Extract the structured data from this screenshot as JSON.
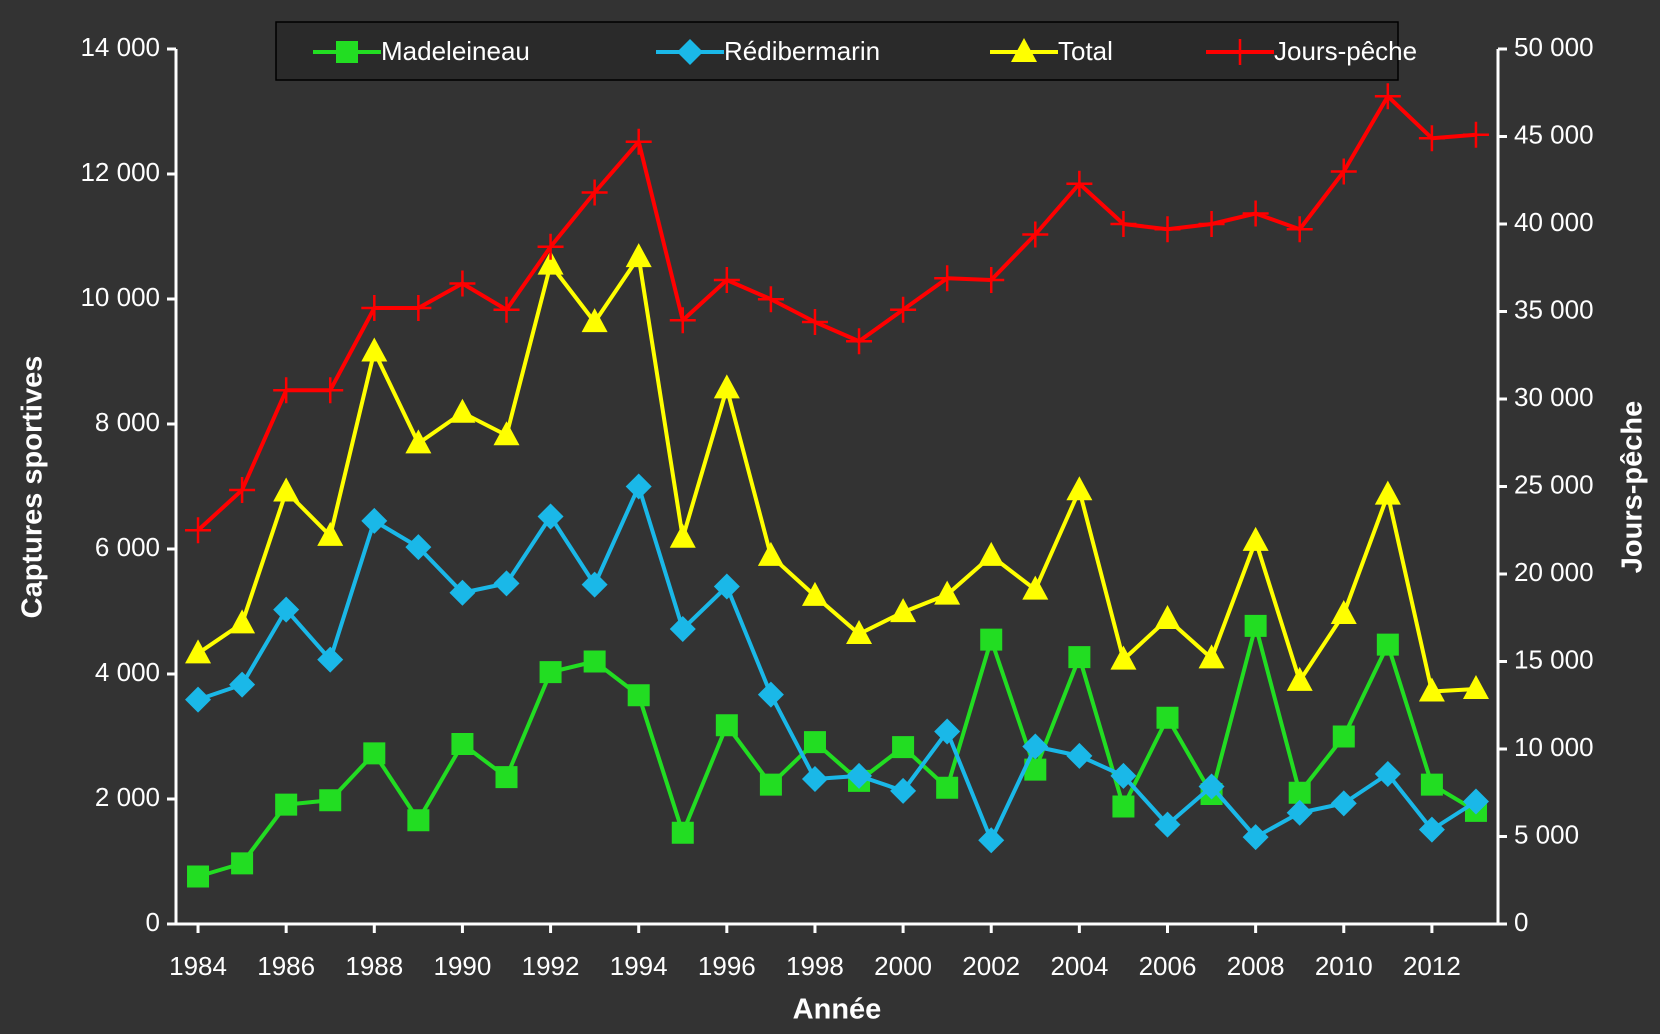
{
  "chart_data": {
    "type": "line",
    "xlabel": "Année",
    "ylabel": "Captures sportives",
    "y2label": "Jours-pêche",
    "legend": "top",
    "x": [
      1984,
      1985,
      1986,
      1987,
      1988,
      1989,
      1990,
      1991,
      1992,
      1993,
      1994,
      1995,
      1996,
      1997,
      1998,
      1999,
      2000,
      2001,
      2002,
      2003,
      2004,
      2005,
      2006,
      2007,
      2008,
      2009,
      2010,
      2011,
      2012,
      2013
    ],
    "xlim": [
      1983.5,
      2013.5
    ],
    "xticks": [
      1984,
      1986,
      1988,
      1990,
      1992,
      1994,
      1996,
      1998,
      2000,
      2002,
      2004,
      2006,
      2008,
      2010,
      2012
    ],
    "ylim": [
      0,
      14000
    ],
    "yticks": [
      0,
      {
        "value": 2000,
        "label": "2 000"
      },
      {
        "value": 4000,
        "label": "4 000"
      },
      {
        "value": 6000,
        "label": "6 000"
      },
      {
        "value": 8000,
        "label": "8 000"
      },
      {
        "value": 10000,
        "label": "10 000"
      },
      {
        "value": 12000,
        "label": "12 000"
      },
      {
        "value": 14000,
        "label": "14 000"
      }
    ],
    "y2lim": [
      0,
      50000
    ],
    "y2ticks": [
      0,
      {
        "value": 5000,
        "label": "5 000"
      },
      {
        "value": 10000,
        "label": "10 000"
      },
      {
        "value": 15000,
        "label": "15 000"
      },
      {
        "value": 20000,
        "label": "20 000"
      },
      {
        "value": 25000,
        "label": "25 000"
      },
      {
        "value": 30000,
        "label": "30 000"
      },
      {
        "value": 35000,
        "label": "35 000"
      },
      {
        "value": 40000,
        "label": "40 000"
      },
      {
        "value": 45000,
        "label": "45 000"
      },
      {
        "value": 50000,
        "label": "50 000"
      }
    ],
    "series": [
      {
        "name": "Madeleineau",
        "color": "#22dd22",
        "marker": "square",
        "values": [
          760,
          970,
          1910,
          1980,
          2730,
          1660,
          2880,
          2350,
          4030,
          4200,
          3660,
          1460,
          3180,
          2230,
          2910,
          2290,
          2830,
          2180,
          4550,
          2470,
          4270,
          1880,
          3300,
          2080,
          4770,
          2100,
          3000,
          4470,
          2230,
          1810
        ]
      },
      {
        "name": "Rédibermarin",
        "color": "#1ab8e8",
        "marker": "diamond",
        "values": [
          3590,
          3830,
          5030,
          4230,
          6450,
          6030,
          5300,
          5450,
          6520,
          5430,
          7000,
          4720,
          5400,
          3670,
          2320,
          2370,
          2130,
          3080,
          1340,
          2840,
          2690,
          2370,
          1590,
          2200,
          1390,
          1780,
          1930,
          2400,
          1510,
          1960
        ]
      },
      {
        "name": "Total",
        "color": "#ffff00",
        "marker": "triangle",
        "values": [
          4330,
          4810,
          6920,
          6210,
          9160,
          7690,
          8180,
          7820,
          10550,
          9630,
          10670,
          6180,
          8570,
          5890,
          5250,
          4640,
          4990,
          5270,
          5890,
          5350,
          6940,
          4230,
          4880,
          4250,
          6130,
          3890,
          4960,
          6870,
          3720,
          3760
        ]
      },
      {
        "name": "Jours-pêche",
        "color": "#ff0000",
        "marker": "plus",
        "axis": "y2",
        "values": [
          22500,
          24800,
          30500,
          30500,
          35200,
          35200,
          36600,
          35100,
          38700,
          41800,
          44700,
          34500,
          36800,
          35700,
          34400,
          33300,
          35100,
          36900,
          36800,
          39400,
          42300,
          40000,
          39700,
          40000,
          40600,
          39700,
          43000,
          47300,
          44900,
          45100
        ]
      }
    ]
  }
}
